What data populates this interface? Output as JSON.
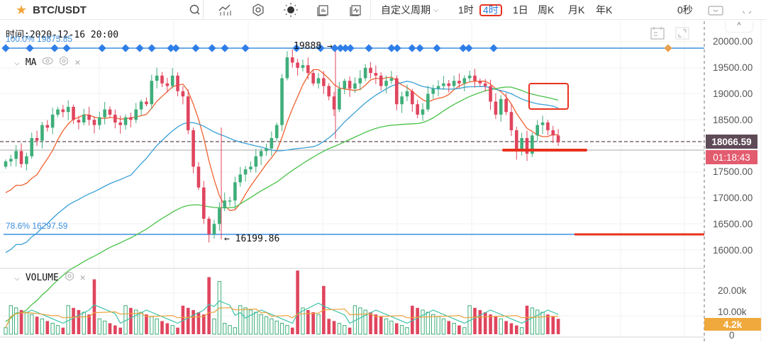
{
  "toolbar": {
    "symbol": "BTC/USDT",
    "custom_period_label": "自定义周期",
    "periods": [
      {
        "label": "1时",
        "active": false
      },
      {
        "label": "4时",
        "active": true
      },
      {
        "label": "1日",
        "active": false
      },
      {
        "label": "周K",
        "active": false
      },
      {
        "label": "月K",
        "active": false
      },
      {
        "label": "年K",
        "active": false
      }
    ],
    "countdown": "0秒",
    "icons": [
      "search-icon",
      "indicator-icon",
      "settings-icon",
      "theme-icon",
      "template-icon",
      "compare-icon"
    ]
  },
  "legend": {
    "time_label": "时间:2020-12-16 20:00",
    "ma_title": "MA",
    "volume_title": "VOLUME"
  },
  "fib": {
    "top_label": "100.0% 19875.85",
    "bottom_label": "78.6% 16297.59"
  },
  "annotations": {
    "high": "19888 →",
    "low": "← 16199.86"
  },
  "price_axis": {
    "ticks": [
      "20000.00",
      "19500.00",
      "19000.00",
      "18500.00",
      "17500.00",
      "17000.00",
      "16500.00",
      "16000.00"
    ],
    "last_price": "18066.59",
    "countdown": "01:18:43",
    "last_price_color": "#5f4a57",
    "countdown_color": "#e35b6e"
  },
  "volume_axis": {
    "ticks": [
      "20.00k",
      "10.00k",
      "0"
    ],
    "last_volume": "4.2k",
    "last_volume_color": "#f0a93c"
  },
  "colors": {
    "up": "#3fae7a",
    "down": "#e0455e",
    "ma_fast": "#f0612f",
    "ma_mid": "#3aa0d6",
    "ma_slow": "#47c247",
    "fib_line": "#3d8fe0",
    "marker_highlight": "#e8321e"
  },
  "chart_data": {
    "type": "candlestick",
    "title": "BTC/USDT 4H",
    "ylim": [
      15800,
      20100
    ],
    "closes_approx": [
      17700,
      17750,
      17900,
      17650,
      17800,
      18150,
      18100,
      18400,
      18350,
      18600,
      18700,
      18650,
      18750,
      18500,
      18450,
      18600,
      18500,
      18400,
      18550,
      18700,
      18600,
      18450,
      18400,
      18550,
      18500,
      18700,
      18850,
      18800,
      19250,
      19350,
      19200,
      19150,
      19350,
      19050,
      18950,
      18300,
      17600,
      17200,
      16600,
      16300,
      16500,
      16800,
      16950,
      16950,
      17300,
      17450,
      17550,
      17600,
      17800,
      17900,
      17950,
      18150,
      18400,
      19300,
      19700,
      19600,
      19500,
      19550,
      19400,
      19200,
      19300,
      19150,
      18950,
      18700,
      19100,
      19250,
      19100,
      19200,
      19300,
      19500,
      19400,
      19350,
      19150,
      19250,
      19300,
      18800,
      18950,
      19050,
      18800,
      18600,
      18700,
      19000,
      19100,
      19150,
      19200,
      19150,
      19250,
      19200,
      19300,
      19350,
      19250,
      19200,
      19150,
      18850,
      18600,
      18900,
      18650,
      18300,
      17900,
      18150,
      17850,
      18200,
      18400,
      18450,
      18300,
      18200,
      18066.59
    ],
    "volume_note": "Volume bars with MA lines; max ~22k"
  }
}
